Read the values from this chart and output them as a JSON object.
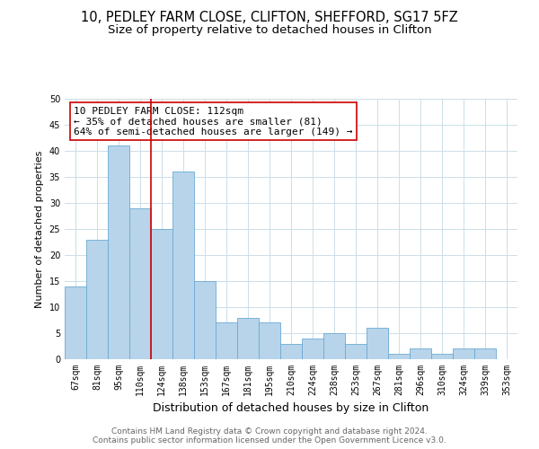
{
  "title": "10, PEDLEY FARM CLOSE, CLIFTON, SHEFFORD, SG17 5FZ",
  "subtitle": "Size of property relative to detached houses in Clifton",
  "xlabel": "Distribution of detached houses by size in Clifton",
  "ylabel": "Number of detached properties",
  "bar_labels": [
    "67sqm",
    "81sqm",
    "95sqm",
    "110sqm",
    "124sqm",
    "138sqm",
    "153sqm",
    "167sqm",
    "181sqm",
    "195sqm",
    "210sqm",
    "224sqm",
    "238sqm",
    "253sqm",
    "267sqm",
    "281sqm",
    "296sqm",
    "310sqm",
    "324sqm",
    "339sqm",
    "353sqm"
  ],
  "bar_values": [
    14,
    23,
    41,
    29,
    25,
    36,
    15,
    7,
    8,
    7,
    3,
    4,
    5,
    3,
    6,
    1,
    2,
    1,
    2,
    2,
    0
  ],
  "bar_color": "#b8d4ea",
  "bar_edge_color": "#6aaad4",
  "vline_x_index": 3.5,
  "vline_color": "#cc0000",
  "annotation_lines": [
    "10 PEDLEY FARM CLOSE: 112sqm",
    "← 35% of detached houses are smaller (81)",
    "64% of semi-detached houses are larger (149) →"
  ],
  "annotation_box_color": "#ffffff",
  "annotation_box_edge": "#cc0000",
  "ylim": [
    0,
    50
  ],
  "yticks": [
    0,
    5,
    10,
    15,
    20,
    25,
    30,
    35,
    40,
    45,
    50
  ],
  "footer_line1": "Contains HM Land Registry data © Crown copyright and database right 2024.",
  "footer_line2": "Contains public sector information licensed under the Open Government Licence v3.0.",
  "bg_color": "#ffffff",
  "grid_color": "#ccdde8",
  "title_fontsize": 10.5,
  "subtitle_fontsize": 9.5,
  "xlabel_fontsize": 9,
  "ylabel_fontsize": 8,
  "tick_fontsize": 7,
  "annotation_fontsize": 8,
  "footer_fontsize": 6.5,
  "footer_color": "#666666"
}
